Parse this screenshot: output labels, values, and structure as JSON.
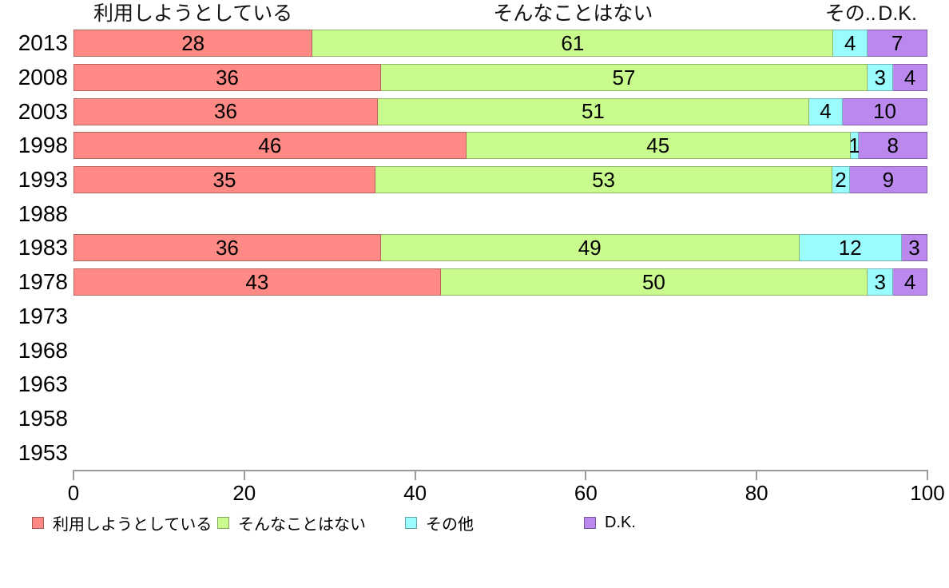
{
  "chart_data": {
    "type": "bar",
    "orientation": "horizontal",
    "stacked": true,
    "grid": false,
    "legend_position": "bottom",
    "categories": [
      "2013",
      "2008",
      "2003",
      "1998",
      "1993",
      "1988",
      "1983",
      "1978",
      "1973",
      "1968",
      "1963",
      "1958",
      "1953"
    ],
    "series": [
      {
        "name": "利用しようとしている",
        "color": "#ff8a85",
        "values": [
          28,
          36,
          36,
          46,
          35,
          null,
          36,
          43,
          null,
          null,
          null,
          null,
          null
        ]
      },
      {
        "name": "そんなことはない",
        "color": "#c9fa8d",
        "values": [
          61,
          57,
          51,
          45,
          53,
          null,
          49,
          50,
          null,
          null,
          null,
          null,
          null
        ]
      },
      {
        "name": "その他",
        "color": "#9afcfd",
        "values": [
          4,
          3,
          4,
          1,
          2,
          null,
          12,
          3,
          null,
          null,
          null,
          null,
          null
        ]
      },
      {
        "name": "D.K.",
        "color": "#bb88ee",
        "values": [
          7,
          4,
          10,
          8,
          9,
          null,
          3,
          4,
          null,
          null,
          null,
          null,
          null
        ]
      }
    ],
    "header_labels": [
      "利用しようとしている",
      "そんなことはない",
      "その..",
      "D.K."
    ],
    "xlabel": "",
    "ylabel": "",
    "xlim": [
      0,
      100
    ],
    "x_ticks": [
      "0",
      "20",
      "40",
      "60",
      "80",
      "100"
    ],
    "legend": [
      {
        "label": "利用しようとしている",
        "color": "#ff8a85"
      },
      {
        "label": "そんなことはない",
        "color": "#c9fa8d"
      },
      {
        "label": "その他",
        "color": "#9afcfd"
      },
      {
        "label": "D.K.",
        "color": "#bb88ee"
      }
    ]
  }
}
